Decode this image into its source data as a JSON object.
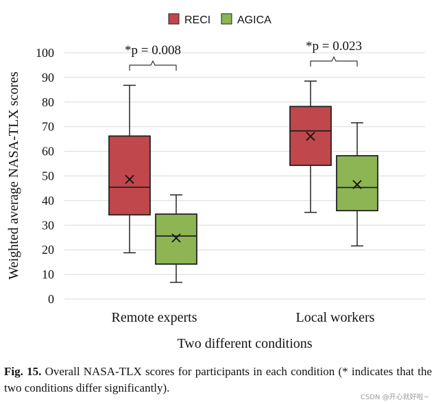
{
  "chart_data": {
    "type": "box",
    "categories": [
      "Remote experts",
      "Local workers"
    ],
    "xlabel": "Two different conditions",
    "ylabel": "Weighted average NASA-TLX scores",
    "ylim": [
      0,
      100
    ],
    "yticks": [
      0,
      10,
      20,
      30,
      40,
      50,
      60,
      70,
      80,
      90,
      100
    ],
    "grid": true,
    "legend_position": "top",
    "series": [
      {
        "name": "RECI",
        "color": "#c0474b",
        "boxes": [
          {
            "min": 18.8,
            "q1": 34.2,
            "median": 45.4,
            "q3": 66.2,
            "max": 86.8,
            "mean": 48.6
          },
          {
            "min": 35.2,
            "q1": 54.3,
            "median": 68.3,
            "q3": 78.2,
            "max": 88.5,
            "mean": 66.1
          }
        ]
      },
      {
        "name": "AGICA",
        "color": "#8db553",
        "boxes": [
          {
            "min": 6.8,
            "q1": 14.2,
            "median": 25.6,
            "q3": 34.5,
            "max": 42.3,
            "mean": 24.8
          },
          {
            "min": 21.6,
            "q1": 35.9,
            "median": 45.3,
            "q3": 58.2,
            "max": 71.6,
            "mean": 46.5
          }
        ]
      }
    ],
    "annotations": [
      {
        "text": "*p = 0.008",
        "category": "Remote experts"
      },
      {
        "text": "*p = 0.023",
        "category": "Local workers"
      }
    ]
  },
  "caption": {
    "label": "Fig. 15.",
    "text": "Overall NASA-TLX scores for participants in each condition (* indicates that the two conditions differ significantly)."
  },
  "watermark": "CSDN @开心就好啦~"
}
